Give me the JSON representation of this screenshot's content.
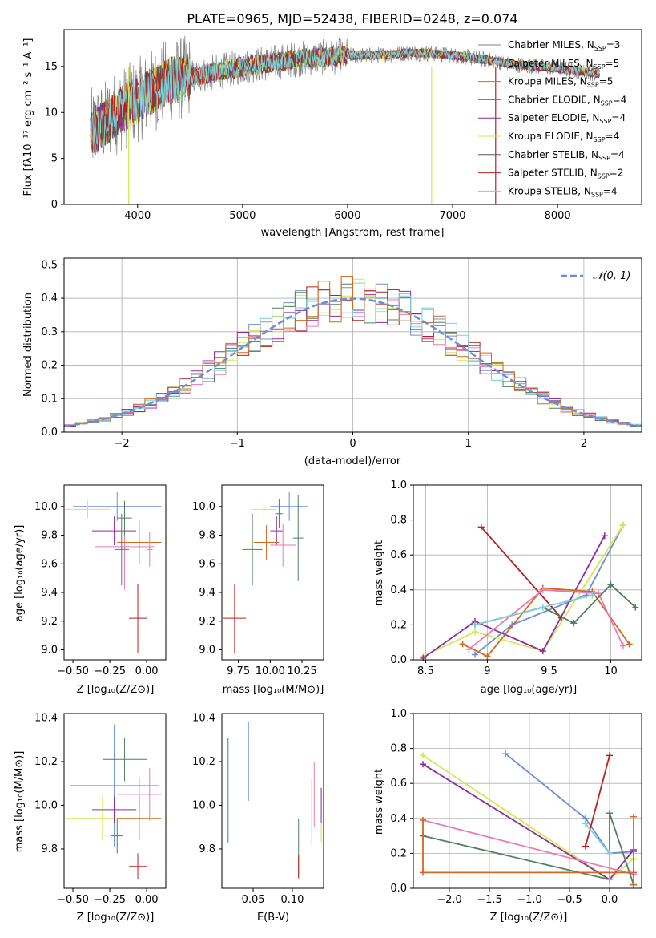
{
  "chart_data": [
    {
      "id": "spectrum",
      "type": "line",
      "title": "PLATE=0965, MJD=52438, FIBERID=0248, z=0.074",
      "xlabel": "wavelength [Angstrom, rest frame]",
      "ylabel": "Flux [fλ10⁻¹⁷ erg cm⁻² s⁻¹ A⁻¹]",
      "xlim": [
        3300,
        8800
      ],
      "ylim": [
        0,
        19
      ],
      "xticks": [
        4000,
        5000,
        6000,
        7000,
        8000
      ],
      "yticks": [
        0,
        5,
        10,
        15
      ],
      "grid": false,
      "legend": "right",
      "data_anchor": {
        "x": [
          3550,
          3650,
          3800,
          3950,
          4100,
          4300,
          4500,
          4800,
          5000,
          5200,
          5400,
          5600,
          5800,
          6000,
          6200,
          6400,
          6600,
          6800,
          7000,
          7200,
          7400,
          7600,
          7800,
          8000,
          8200,
          8400
        ],
        "y": [
          8,
          8.5,
          10,
          11,
          12,
          13.5,
          13.8,
          14.5,
          15,
          15.3,
          15.6,
          15.9,
          16,
          16.2,
          16.2,
          16.3,
          16.5,
          16.4,
          16.2,
          15.9,
          15.6,
          15.2,
          15,
          14.8,
          14.5,
          14.2
        ]
      },
      "series": [
        {
          "name": "Chabrier MILES, N_SSP=3",
          "label_main": "Chabrier MILES, N",
          "label_n": "=3",
          "color": "#808080"
        },
        {
          "name": "Salpeter MILES, N_SSP=5",
          "label_main": "Salpeter MILES, N",
          "label_n": "=5",
          "color": "#707070"
        },
        {
          "name": "Kroupa MILES, N_SSP=5",
          "label_main": "Kroupa MILES, N",
          "label_n": "=5",
          "color": "#d2691e"
        },
        {
          "name": "Chabrier ELODIE, N_SSP=4",
          "label_main": "Chabrier ELODIE, N",
          "label_n": "=4",
          "color": "#4f7f5f"
        },
        {
          "name": "Salpeter ELODIE, N_SSP=4",
          "label_main": "Salpeter ELODIE, N",
          "label_n": "=4",
          "color": "#8e2ca0"
        },
        {
          "name": "Kroupa ELODIE, N_SSP=4",
          "label_main": "Kroupa ELODIE, N",
          "label_n": "=4",
          "color": "#d4e84f"
        },
        {
          "name": "Chabrier STELIB, N_SSP=4",
          "label_main": "Chabrier STELIB, N",
          "label_n": "=4",
          "color": "#555555"
        },
        {
          "name": "Salpeter STELIB, N_SSP=2",
          "label_main": "Salpeter STELIB, N",
          "label_n": "=2",
          "color": "#b22222"
        },
        {
          "name": "Kroupa STELIB, N_SSP=4",
          "label_main": "Kroupa STELIB, N",
          "label_n": "=4",
          "color": "#7ed0d8"
        }
      ],
      "ssp_subscript": "SSP"
    },
    {
      "id": "residuals",
      "type": "histogram",
      "xlabel": "(data-model)/error",
      "ylabel": "Normed distribution",
      "xlim": [
        -2.5,
        2.5
      ],
      "ylim": [
        0,
        0.52
      ],
      "xticks": [
        -2,
        -1,
        0,
        1,
        2
      ],
      "yticks": [
        0.0,
        0.1,
        0.2,
        0.3,
        0.4,
        0.5
      ],
      "grid": true,
      "legend": "top-right",
      "reference_curve": {
        "name": "N(0,1)",
        "label": "𝒩(0, 1)",
        "color": "#6a8fd8",
        "mean": 0,
        "sd": 1
      },
      "bin_width": 0.1,
      "series_colors": [
        "#6a8fd8",
        "#d4e84f",
        "#b22222",
        "#4f7f5f",
        "#8e2ca0",
        "#e87ab8",
        "#7ed0d8",
        "#d2691e"
      ]
    },
    {
      "id": "age-vs-z",
      "type": "errorbar",
      "xlabel": "Z [log₁₀(Z/Z⊙)]",
      "ylabel": "age  [log₁₀(age/yr)]",
      "xlim": [
        -0.56,
        0.13
      ],
      "ylim": [
        8.93,
        10.15
      ],
      "xticks": [
        -0.5,
        -0.25,
        0.0
      ],
      "xticklabels": [
        "−0.50",
        "−0.25",
        "0.00"
      ],
      "yticks": [
        9.0,
        9.2,
        9.4,
        9.6,
        9.8,
        10.0
      ],
      "points": [
        {
          "x": -0.2,
          "xerr": [
            0.3,
            0.3
          ],
          "y": 10.0,
          "yerr": [
            0.1,
            0.1
          ],
          "color": "#6a8fd8"
        },
        {
          "x": -0.4,
          "xerr": [
            0.15,
            0.15
          ],
          "y": 9.98,
          "yerr": [
            0.06,
            0.06
          ],
          "color": "#d4e84f"
        },
        {
          "x": -0.22,
          "xerr": [
            0.15,
            0.15
          ],
          "y": 9.83,
          "yerr": [
            0.1,
            0.1
          ],
          "color": "#8e2ca0"
        },
        {
          "x": -0.15,
          "xerr": [
            0.2,
            0.2
          ],
          "y": 9.72,
          "yerr": [
            0.3,
            0.3
          ],
          "color": "#e87ab8"
        },
        {
          "x": -0.05,
          "xerr": [
            0.15,
            0.15
          ],
          "y": 9.75,
          "yerr": [
            0.15,
            0.15
          ],
          "color": "#d2691e"
        },
        {
          "x": -0.17,
          "xerr": [
            0.05,
            0.05
          ],
          "y": 9.7,
          "yerr": [
            0.25,
            0.25
          ],
          "color": "#4f7f5f"
        },
        {
          "x": -0.06,
          "xerr": [
            0.06,
            0.06
          ],
          "y": 9.22,
          "yerr": [
            0.24,
            0.24
          ],
          "color": "#b22222"
        },
        {
          "x": 0.02,
          "xerr": [
            0.02,
            0.02
          ],
          "y": 9.7,
          "yerr": [
            0.12,
            0.12
          ],
          "color": "#e87ab8"
        },
        {
          "x": -0.15,
          "xerr": [
            0.05,
            0.05
          ],
          "y": 9.92,
          "yerr": [
            0.12,
            0.12
          ],
          "color": "#4f7f5f"
        }
      ]
    },
    {
      "id": "age-vs-mass",
      "type": "errorbar",
      "xlabel": "mass [log₁₀(M/M⊙)]",
      "xlim": [
        9.62,
        10.42
      ],
      "ylim": [
        8.93,
        10.15
      ],
      "xticks": [
        9.75,
        10.0,
        10.25
      ],
      "xticklabels": [
        "9.75",
        "10.00",
        "10.25"
      ],
      "yticks": [
        9.0,
        9.2,
        9.4,
        9.6,
        9.8,
        10.0
      ],
      "points": [
        {
          "x": 10.15,
          "xerr": [
            0.15,
            0.15
          ],
          "y": 10.0,
          "yerr": [
            0.1,
            0.1
          ],
          "color": "#6a8fd8"
        },
        {
          "x": 9.95,
          "xerr": [
            0.1,
            0.1
          ],
          "y": 9.98,
          "yerr": [
            0.06,
            0.06
          ],
          "color": "#d4e84f"
        },
        {
          "x": 10.05,
          "xerr": [
            0.05,
            0.05
          ],
          "y": 9.83,
          "yerr": [
            0.1,
            0.1
          ],
          "color": "#8e2ca0"
        },
        {
          "x": 10.1,
          "xerr": [
            0.1,
            0.1
          ],
          "y": 9.73,
          "yerr": [
            0.15,
            0.15
          ],
          "color": "#e87ab8"
        },
        {
          "x": 9.97,
          "xerr": [
            0.1,
            0.1
          ],
          "y": 9.75,
          "yerr": [
            0.12,
            0.12
          ],
          "color": "#d2691e"
        },
        {
          "x": 9.86,
          "xerr": [
            0.08,
            0.08
          ],
          "y": 9.7,
          "yerr": [
            0.25,
            0.25
          ],
          "color": "#4f7f5f"
        },
        {
          "x": 9.72,
          "xerr": [
            0.09,
            0.09
          ],
          "y": 9.22,
          "yerr": [
            0.24,
            0.24
          ],
          "color": "#b22222"
        },
        {
          "x": 10.22,
          "xerr": [
            0.04,
            0.04
          ],
          "y": 9.78,
          "yerr": [
            0.3,
            0.3
          ],
          "color": "#4f7f5f"
        },
        {
          "x": 10.07,
          "xerr": [
            0.03,
            0.03
          ],
          "y": 9.95,
          "yerr": [
            0.1,
            0.1
          ],
          "color": "#4f7f5f"
        }
      ]
    },
    {
      "id": "weight-vs-age",
      "type": "line",
      "xlabel": "age  [log₁₀(age/yr)]",
      "ylabel": "mass weight",
      "xlim": [
        8.4,
        10.25
      ],
      "ylim": [
        0,
        1
      ],
      "xticks": [
        8.5,
        9.0,
        9.5,
        10.0
      ],
      "yticks": [
        0.0,
        0.2,
        0.4,
        0.6,
        0.8,
        1.0
      ],
      "grid": true,
      "series": [
        {
          "color": "#6a8fd8",
          "x": [
            8.9,
            9.2,
            9.8,
            10.1
          ],
          "y": [
            0.03,
            0.2,
            0.37,
            0.77
          ]
        },
        {
          "color": "#d4e84f",
          "x": [
            8.48,
            8.9,
            9.45,
            10.1
          ],
          "y": [
            0.02,
            0.16,
            0.05,
            0.77
          ]
        },
        {
          "color": "#8e2ca0",
          "x": [
            8.48,
            8.9,
            9.45,
            9.95
          ],
          "y": [
            0.01,
            0.22,
            0.05,
            0.71
          ]
        },
        {
          "color": "#b22222",
          "x": [
            8.95,
            9.6
          ],
          "y": [
            0.76,
            0.24
          ]
        },
        {
          "color": "#d2691e",
          "x": [
            8.8,
            9.0,
            9.45,
            9.85,
            10.15
          ],
          "y": [
            0.09,
            0.02,
            0.41,
            0.39,
            0.09
          ]
        },
        {
          "color": "#e87ab8",
          "x": [
            8.85,
            9.45,
            9.9,
            10.1
          ],
          "y": [
            0.06,
            0.4,
            0.38,
            0.08
          ]
        },
        {
          "color": "#4f7f5f",
          "x": [
            8.9,
            9.45,
            9.7,
            10.0,
            10.2
          ],
          "y": [
            0.2,
            0.3,
            0.21,
            0.43,
            0.3
          ]
        },
        {
          "color": "#7ed0d8",
          "x": [
            8.9,
            9.45,
            9.85
          ],
          "y": [
            0.2,
            0.3,
            0.37
          ]
        }
      ]
    },
    {
      "id": "mass-vs-z",
      "type": "errorbar",
      "xlabel": "Z [log₁₀(Z/Z⊙)]",
      "ylabel": "mass [log₁₀(M/M⊙)]",
      "xlim": [
        -0.56,
        0.13
      ],
      "ylim": [
        9.62,
        10.42
      ],
      "xticks": [
        -0.5,
        -0.25,
        0.0
      ],
      "xticklabels": [
        "−0.50",
        "−0.25",
        "0.00"
      ],
      "yticks": [
        9.8,
        10.0,
        10.2,
        10.4
      ],
      "points": [
        {
          "x": -0.22,
          "xerr": [
            0.3,
            0.3
          ],
          "y": 10.09,
          "yerr": [
            0.28,
            0.28
          ],
          "color": "#6a8fd8"
        },
        {
          "x": -0.3,
          "xerr": [
            0.25,
            0.25
          ],
          "y": 9.94,
          "yerr": [
            0.1,
            0.1
          ],
          "color": "#d4e84f"
        },
        {
          "x": -0.22,
          "xerr": [
            0.15,
            0.15
          ],
          "y": 9.98,
          "yerr": [
            0.06,
            0.06
          ],
          "color": "#8e2ca0"
        },
        {
          "x": -0.05,
          "xerr": [
            0.15,
            0.15
          ],
          "y": 10.05,
          "yerr": [
            0.08,
            0.08
          ],
          "color": "#e87ab8"
        },
        {
          "x": -0.05,
          "xerr": [
            0.15,
            0.15
          ],
          "y": 9.94,
          "yerr": [
            0.1,
            0.1
          ],
          "color": "#d2691e"
        },
        {
          "x": -0.15,
          "xerr": [
            0.15,
            0.15
          ],
          "y": 10.21,
          "yerr": [
            0.1,
            0.1
          ],
          "color": "#4f7f5f"
        },
        {
          "x": -0.06,
          "xerr": [
            0.06,
            0.06
          ],
          "y": 9.72,
          "yerr": [
            0.06,
            0.06
          ],
          "color": "#b22222"
        },
        {
          "x": -0.2,
          "xerr": [
            0.04,
            0.04
          ],
          "y": 9.86,
          "yerr": [
            0.08,
            0.08
          ],
          "color": "#4f7f5f"
        },
        {
          "x": 0.02,
          "xerr": [
            0.01,
            0.01
          ],
          "y": 10.05,
          "yerr": [
            0.12,
            0.12
          ],
          "color": "#e87ab8"
        }
      ]
    },
    {
      "id": "mass-vs-ebv",
      "type": "errorbar",
      "xlabel": "E(B-V)",
      "xlim": [
        0.01,
        0.14
      ],
      "ylim": [
        9.62,
        10.42
      ],
      "xticks": [
        0.05,
        0.1
      ],
      "xticklabels": [
        "0.05",
        "0.10"
      ],
      "yticks": [
        9.8,
        10.0,
        10.2,
        10.4
      ],
      "points": [
        {
          "x": 0.018,
          "xerr": [
            0,
            0
          ],
          "y": 10.07,
          "yerr": [
            0.24,
            0.24
          ],
          "color": "#4f7f5f"
        },
        {
          "x": 0.044,
          "xerr": [
            0,
            0
          ],
          "y": 10.2,
          "yerr": [
            0.18,
            0.18
          ],
          "color": "#6a8fd8"
        },
        {
          "x": 0.108,
          "xerr": [
            0,
            0
          ],
          "y": 9.8,
          "yerr": [
            0.14,
            0.14
          ],
          "color": "#4f7f5f"
        },
        {
          "x": 0.108,
          "xerr": [
            0,
            0
          ],
          "y": 9.72,
          "yerr": [
            0.05,
            0.05
          ],
          "color": "#b22222"
        },
        {
          "x": 0.125,
          "xerr": [
            0,
            0
          ],
          "y": 9.97,
          "yerr": [
            0.15,
            0.15
          ],
          "color": "#d2691e"
        },
        {
          "x": 0.128,
          "xerr": [
            0,
            0
          ],
          "y": 10.05,
          "yerr": [
            0.15,
            0.15
          ],
          "color": "#e87ab8"
        },
        {
          "x": 0.137,
          "xerr": [
            0,
            0
          ],
          "y": 9.95,
          "yerr": [
            0.12,
            0.12
          ],
          "color": "#d4e84f"
        },
        {
          "x": 0.137,
          "xerr": [
            0,
            0
          ],
          "y": 10.0,
          "yerr": [
            0.08,
            0.08
          ],
          "color": "#8e2ca0"
        }
      ]
    },
    {
      "id": "weight-vs-z",
      "type": "line",
      "xlabel": "Z [log₁₀(Z/Z⊙)]",
      "ylabel": "mass weight",
      "xlim": [
        -2.45,
        0.4
      ],
      "ylim": [
        0,
        1
      ],
      "xticks": [
        -2.0,
        -1.5,
        -1.0,
        -0.5,
        0.0
      ],
      "xticklabels": [
        "−2.0",
        "−1.5",
        "−1.0",
        "−0.5",
        "0.0"
      ],
      "yticks": [
        0.0,
        0.2,
        0.4,
        0.6,
        0.8,
        1.0
      ],
      "grid": true,
      "series": [
        {
          "color": "#6a8fd8",
          "x": [
            -1.3,
            -0.3,
            0.0,
            0.3
          ],
          "y": [
            0.77,
            0.4,
            0.2,
            0.21
          ]
        },
        {
          "color": "#d4e84f",
          "x": [
            -2.33,
            0.0,
            0.3
          ],
          "y": [
            0.76,
            0.05,
            0.17
          ]
        },
        {
          "color": "#8e2ca0",
          "x": [
            -2.33,
            0.0,
            0.3
          ],
          "y": [
            0.71,
            0.05,
            0.22
          ]
        },
        {
          "color": "#b22222",
          "x": [
            -0.3,
            0.0
          ],
          "y": [
            0.24,
            0.76
          ]
        },
        {
          "color": "#e87ab8",
          "x": [
            -2.33,
            0.3
          ],
          "y": [
            0.39,
            0.08
          ]
        },
        {
          "color": "#4f7f5f",
          "x": [
            -2.33,
            0.0,
            0.0,
            0.3
          ],
          "y": [
            0.3,
            0.05,
            0.43,
            0.02
          ]
        },
        {
          "color": "#7ed0d8",
          "x": [
            -0.3,
            0.0,
            0.0
          ],
          "y": [
            0.37,
            0.2,
            0.05
          ]
        },
        {
          "color": "#d2691e",
          "x": [
            -2.33,
            -2.33,
            0.3,
            0.3,
            0.3
          ],
          "y": [
            0.39,
            0.09,
            0.09,
            0.41,
            0.02
          ]
        }
      ]
    }
  ]
}
